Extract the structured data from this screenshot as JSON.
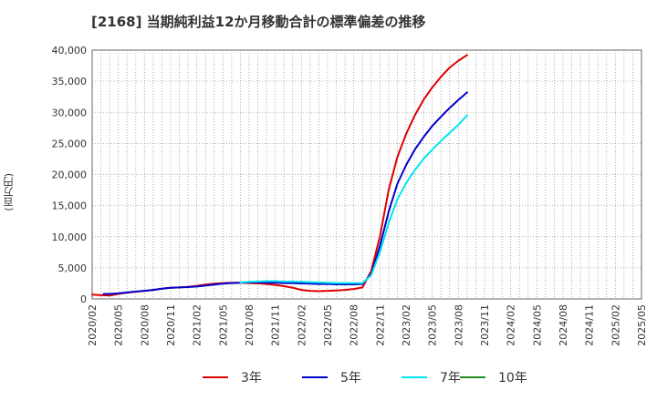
{
  "chart_data": {
    "type": "line",
    "title": "[2168]  当期純利益12か月移動合計の標準偏差の推移",
    "ylabel": "(百万円)",
    "xlabel": "",
    "ylim": [
      0,
      40000
    ],
    "yticks": [
      0,
      5000,
      10000,
      15000,
      20000,
      25000,
      30000,
      35000,
      40000
    ],
    "ytick_labels": [
      "0",
      "5,000",
      "10,000",
      "15,000",
      "20,000",
      "25,000",
      "30,000",
      "35,000",
      "40,000"
    ],
    "x_labels": [
      "2020/02",
      "2020/05",
      "2020/08",
      "2020/11",
      "2021/02",
      "2021/05",
      "2021/08",
      "2021/11",
      "2022/02",
      "2022/05",
      "2022/08",
      "2022/11",
      "2023/02",
      "2023/05",
      "2023/08",
      "2023/11",
      "2024/02",
      "2024/05",
      "2024/08",
      "2024/11",
      "2025/02",
      "2025/05"
    ],
    "grid": true,
    "legend_position": "bottom",
    "series": [
      {
        "name": "3年",
        "color": "#e00000",
        "points": [
          [
            0,
            700
          ],
          [
            1,
            600
          ],
          [
            2,
            550
          ],
          [
            3,
            800
          ],
          [
            4,
            1000
          ],
          [
            5,
            1150
          ],
          [
            6,
            1300
          ],
          [
            7,
            1450
          ],
          [
            8,
            1650
          ],
          [
            9,
            1800
          ],
          [
            10,
            1850
          ],
          [
            11,
            1950
          ],
          [
            12,
            2100
          ],
          [
            13,
            2300
          ],
          [
            14,
            2450
          ],
          [
            15,
            2550
          ],
          [
            16,
            2600
          ],
          [
            17,
            2600
          ],
          [
            18,
            2550
          ],
          [
            19,
            2500
          ],
          [
            20,
            2400
          ],
          [
            21,
            2250
          ],
          [
            22,
            2050
          ],
          [
            23,
            1800
          ],
          [
            24,
            1450
          ],
          [
            25,
            1300
          ],
          [
            26,
            1250
          ],
          [
            27,
            1300
          ],
          [
            28,
            1350
          ],
          [
            29,
            1450
          ],
          [
            30,
            1600
          ],
          [
            31,
            1850
          ],
          [
            32,
            4500
          ],
          [
            33,
            10000
          ],
          [
            34,
            17500
          ],
          [
            35,
            22800
          ],
          [
            36,
            26500
          ],
          [
            37,
            29500
          ],
          [
            38,
            32000
          ],
          [
            39,
            34000
          ],
          [
            40,
            35700
          ],
          [
            41,
            37200
          ],
          [
            42,
            38300
          ],
          [
            43,
            39200
          ]
        ]
      },
      {
        "name": "5年",
        "color": "#0000cc",
        "points": [
          [
            1.3,
            800
          ],
          [
            2,
            800
          ],
          [
            3,
            900
          ],
          [
            4,
            1050
          ],
          [
            5,
            1200
          ],
          [
            6,
            1300
          ],
          [
            7,
            1450
          ],
          [
            8,
            1650
          ],
          [
            9,
            1800
          ],
          [
            10,
            1850
          ],
          [
            11,
            1900
          ],
          [
            12,
            2000
          ],
          [
            13,
            2150
          ],
          [
            14,
            2300
          ],
          [
            15,
            2450
          ],
          [
            16,
            2550
          ],
          [
            17,
            2600
          ],
          [
            18,
            2650
          ],
          [
            19,
            2650
          ],
          [
            20,
            2600
          ],
          [
            21,
            2600
          ],
          [
            22,
            2550
          ],
          [
            23,
            2550
          ],
          [
            24,
            2500
          ],
          [
            25,
            2450
          ],
          [
            26,
            2400
          ],
          [
            27,
            2400
          ],
          [
            28,
            2350
          ],
          [
            29,
            2350
          ],
          [
            30,
            2350
          ],
          [
            31,
            2400
          ],
          [
            32,
            4000
          ],
          [
            33,
            8500
          ],
          [
            34,
            14000
          ],
          [
            35,
            18500
          ],
          [
            36,
            21500
          ],
          [
            37,
            24000
          ],
          [
            38,
            26000
          ],
          [
            39,
            27800
          ],
          [
            40,
            29300
          ],
          [
            41,
            30700
          ],
          [
            42,
            32000
          ],
          [
            43,
            33200
          ]
        ]
      },
      {
        "name": "7年",
        "color": "#00e5ee",
        "points": [
          [
            17,
            2650
          ],
          [
            18,
            2750
          ],
          [
            19,
            2800
          ],
          [
            20,
            2850
          ],
          [
            21,
            2850
          ],
          [
            22,
            2800
          ],
          [
            23,
            2800
          ],
          [
            24,
            2750
          ],
          [
            25,
            2700
          ],
          [
            26,
            2650
          ],
          [
            27,
            2600
          ],
          [
            28,
            2550
          ],
          [
            29,
            2550
          ],
          [
            30,
            2550
          ],
          [
            31,
            2550
          ],
          [
            32,
            3800
          ],
          [
            33,
            7500
          ],
          [
            34,
            12200
          ],
          [
            35,
            16000
          ],
          [
            36,
            18600
          ],
          [
            37,
            20700
          ],
          [
            38,
            22500
          ],
          [
            39,
            24000
          ],
          [
            40,
            25400
          ],
          [
            41,
            26700
          ],
          [
            42,
            28000
          ],
          [
            43,
            29500
          ]
        ]
      },
      {
        "name": "10年",
        "color": "#228b22",
        "points": []
      }
    ]
  }
}
